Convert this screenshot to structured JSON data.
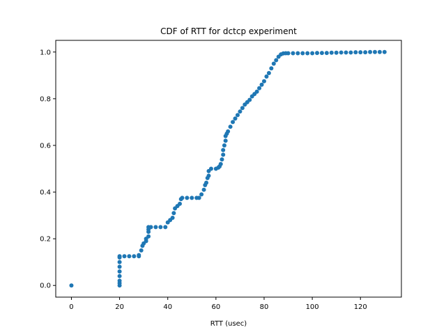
{
  "chart_data": {
    "type": "scatter",
    "title": "CDF of RTT for dctcp experiment",
    "xlabel": "RTT (usec)",
    "ylabel": "",
    "xlim": [
      -6.5,
      137
    ],
    "ylim": [
      -0.05,
      1.05
    ],
    "xticks": [
      0,
      20,
      40,
      60,
      80,
      100,
      120
    ],
    "yticks": [
      0.0,
      0.2,
      0.4,
      0.6,
      0.8,
      1.0
    ],
    "ytick_labels": [
      "0.0",
      "0.2",
      "0.4",
      "0.6",
      "0.8",
      "1.0"
    ],
    "grid": false,
    "marker_color": "#1f77b4",
    "series": [
      {
        "x": [
          0,
          20,
          20,
          20,
          20,
          20,
          20,
          20,
          20,
          20,
          22,
          24,
          26,
          28,
          28,
          29,
          29.5,
          30,
          31,
          31,
          32,
          32,
          32,
          32,
          33,
          35,
          37,
          39,
          40,
          41,
          42,
          42.5,
          43,
          44,
          45,
          45.5,
          46,
          48,
          50,
          52,
          53,
          54,
          55,
          55.5,
          56,
          56.5,
          57,
          57,
          58,
          60,
          61,
          61.5,
          62,
          62.5,
          63,
          63,
          63.5,
          64,
          64,
          64.5,
          65,
          66,
          67,
          68,
          69,
          70,
          71,
          72,
          73,
          74,
          75,
          76,
          77,
          78,
          79,
          80,
          81,
          82,
          83,
          84,
          85,
          86,
          87,
          88,
          89,
          90,
          92,
          94,
          96,
          98,
          100,
          102,
          104,
          106,
          108,
          110,
          112,
          114,
          116,
          118,
          120,
          122,
          124,
          126,
          128,
          130
        ],
        "y": [
          0.0,
          0.0,
          0.01,
          0.02,
          0.04,
          0.06,
          0.08,
          0.1,
          0.12,
          0.125,
          0.125,
          0.125,
          0.125,
          0.125,
          0.13,
          0.15,
          0.17,
          0.18,
          0.19,
          0.2,
          0.21,
          0.23,
          0.24,
          0.25,
          0.25,
          0.25,
          0.25,
          0.25,
          0.27,
          0.28,
          0.29,
          0.31,
          0.33,
          0.34,
          0.35,
          0.37,
          0.375,
          0.375,
          0.375,
          0.375,
          0.375,
          0.39,
          0.41,
          0.43,
          0.44,
          0.46,
          0.47,
          0.49,
          0.5,
          0.5,
          0.505,
          0.51,
          0.52,
          0.54,
          0.56,
          0.58,
          0.6,
          0.62,
          0.64,
          0.65,
          0.66,
          0.68,
          0.7,
          0.715,
          0.73,
          0.745,
          0.76,
          0.775,
          0.785,
          0.795,
          0.81,
          0.82,
          0.83,
          0.845,
          0.86,
          0.875,
          0.895,
          0.91,
          0.93,
          0.95,
          0.965,
          0.98,
          0.99,
          0.994,
          0.995,
          0.995,
          0.995,
          0.995,
          0.995,
          0.995,
          0.995,
          0.996,
          0.996,
          0.996,
          0.997,
          0.997,
          0.998,
          0.998,
          0.998,
          0.999,
          0.999,
          0.999,
          1.0,
          1.0,
          1.0,
          1.0
        ]
      }
    ]
  }
}
